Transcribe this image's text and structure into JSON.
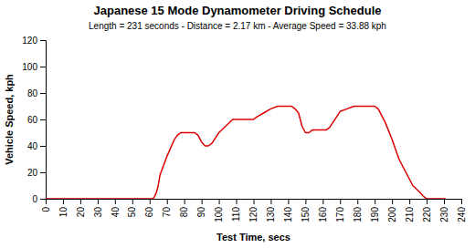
{
  "chart_data": {
    "type": "line",
    "title": "Japanese 15 Mode Dynamometer Driving Schedule",
    "subtitle": "Length = 231 seconds - Distance = 2.17 km - Average Speed = 33.88 kph",
    "xlabel": "Test Time, secs",
    "ylabel": "Vehicle Speed, kph",
    "x": [
      0,
      62,
      63,
      64,
      65,
      66,
      68,
      70,
      72,
      74,
      76,
      78,
      80,
      82,
      84,
      86,
      88,
      90,
      92,
      94,
      96,
      98,
      100,
      104,
      108,
      112,
      116,
      120,
      122,
      126,
      130,
      134,
      138,
      140,
      142,
      144,
      146,
      148,
      150,
      152,
      154,
      158,
      162,
      164,
      166,
      168,
      170,
      174,
      178,
      182,
      186,
      190,
      192,
      196,
      200,
      204,
      208,
      212,
      216,
      218,
      219,
      220,
      221,
      231
    ],
    "values": [
      0,
      0,
      2,
      5,
      10,
      18,
      25,
      32,
      38,
      44,
      48,
      50,
      50,
      50,
      50,
      50,
      48,
      43,
      40,
      40,
      42,
      46,
      50,
      55,
      60,
      60,
      60,
      60,
      62,
      65,
      68,
      70,
      70,
      70,
      70,
      68,
      65,
      55,
      50,
      50,
      52,
      52,
      52,
      54,
      58,
      62,
      66,
      68,
      70,
      70,
      70,
      70,
      68,
      58,
      45,
      30,
      20,
      10,
      5,
      2,
      1,
      0,
      0,
      0
    ],
    "color": "#dd0000",
    "xlim": [
      0,
      240
    ],
    "xticks": [
      0,
      10,
      20,
      30,
      40,
      50,
      60,
      70,
      80,
      90,
      100,
      110,
      120,
      130,
      140,
      150,
      160,
      170,
      180,
      190,
      200,
      210,
      220,
      230,
      240
    ],
    "ylim": [
      0,
      120
    ],
    "yticks": [
      0,
      20,
      40,
      60,
      80,
      100,
      120
    ],
    "grid": false
  }
}
